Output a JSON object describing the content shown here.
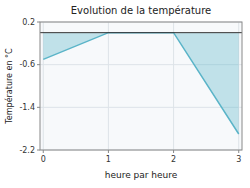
{
  "chart_data": {
    "type": "area",
    "title": "Evolution de la température",
    "xlabel": "heure par heure",
    "ylabel": "Température en °C",
    "x": [
      0,
      1,
      2,
      3
    ],
    "values": [
      -0.5,
      0.0,
      0.0,
      -1.9
    ],
    "color": "#5ab4c8",
    "xlim": [
      -0.05,
      3.05
    ],
    "ylim": [
      -2.2,
      0.2
    ],
    "xticks": [
      0,
      1,
      2,
      3
    ],
    "yticks": [
      0.2,
      -0.6,
      -1.4,
      -2.2
    ],
    "grid": true
  }
}
